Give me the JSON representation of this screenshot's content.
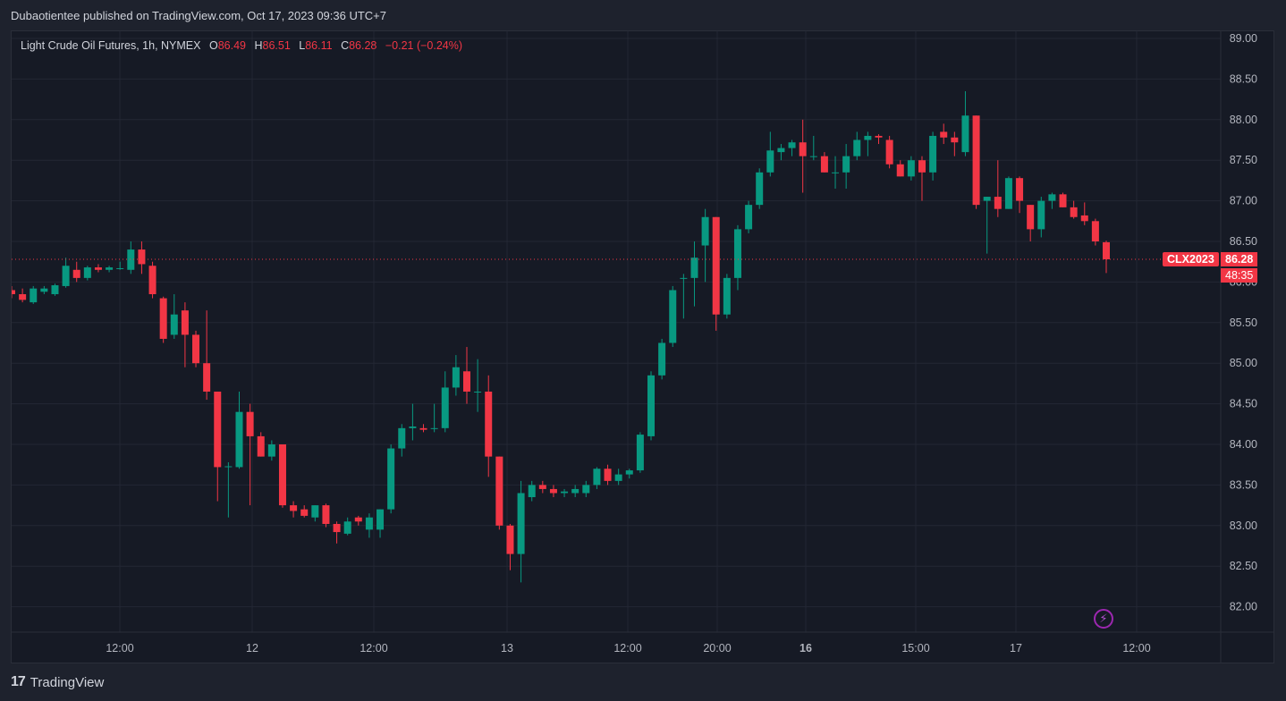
{
  "header": {
    "publisher_line": "Dubaotientee published on TradingView.com, Oct 17, 2023 09:36 UTC+7"
  },
  "legend": {
    "symbol": "Light Crude Oil Futures, 1h, NYMEX",
    "open_label": "O",
    "open": "86.49",
    "high_label": "H",
    "high": "86.51",
    "low_label": "L",
    "low": "86.11",
    "close_label": "C",
    "close": "86.28",
    "change": "−0.21 (−0.24%)"
  },
  "price_tag": {
    "ticker": "CLX2023",
    "price": "86.28",
    "countdown": "48:35"
  },
  "footer": {
    "brand": "TradingView",
    "logo": "17"
  },
  "icons": {
    "alert": "lightning-icon",
    "logo": "tradingview-logo-icon"
  },
  "colors": {
    "up": "#089981",
    "down": "#f23645",
    "background": "#161a25",
    "grid": "#232734",
    "axis_text": "#b2b5be"
  },
  "chart_data": {
    "type": "candlestick",
    "interval": "1h",
    "ylim": [
      81.6,
      89.1
    ],
    "y_ticks": [
      "89.00",
      "88.50",
      "88.00",
      "87.50",
      "87.00",
      "86.50",
      "86.00",
      "85.50",
      "85.00",
      "84.50",
      "84.00",
      "83.50",
      "83.00",
      "82.50",
      "82.00"
    ],
    "x_ticks": [
      "12:00",
      "12",
      "12:00",
      "13",
      "12:00",
      "20:00",
      "16",
      "15:00",
      "17",
      "12:00"
    ],
    "last_price": 86.28,
    "candles": [
      {
        "o": 85.9,
        "h": 85.95,
        "l": 85.8,
        "c": 85.85
      },
      {
        "o": 85.85,
        "h": 85.92,
        "l": 85.75,
        "c": 85.78
      },
      {
        "o": 85.75,
        "h": 85.95,
        "l": 85.73,
        "c": 85.92
      },
      {
        "o": 85.88,
        "h": 85.95,
        "l": 85.85,
        "c": 85.92
      },
      {
        "o": 85.85,
        "h": 85.98,
        "l": 85.83,
        "c": 85.96
      },
      {
        "o": 85.95,
        "h": 86.3,
        "l": 85.93,
        "c": 86.2
      },
      {
        "o": 86.15,
        "h": 86.25,
        "l": 86.0,
        "c": 86.05
      },
      {
        "o": 86.05,
        "h": 86.2,
        "l": 86.02,
        "c": 86.18
      },
      {
        "o": 86.18,
        "h": 86.22,
        "l": 86.12,
        "c": 86.15
      },
      {
        "o": 86.15,
        "h": 86.2,
        "l": 86.12,
        "c": 86.18
      },
      {
        "o": 86.17,
        "h": 86.25,
        "l": 86.15,
        "c": 86.17
      },
      {
        "o": 86.15,
        "h": 86.5,
        "l": 86.1,
        "c": 86.4
      },
      {
        "o": 86.4,
        "h": 86.5,
        "l": 86.1,
        "c": 86.22
      },
      {
        "o": 86.2,
        "h": 86.25,
        "l": 85.8,
        "c": 85.85
      },
      {
        "o": 85.8,
        "h": 85.82,
        "l": 85.25,
        "c": 85.3
      },
      {
        "o": 85.35,
        "h": 85.85,
        "l": 85.3,
        "c": 85.6
      },
      {
        "o": 85.65,
        "h": 85.75,
        "l": 84.95,
        "c": 85.35
      },
      {
        "o": 85.35,
        "h": 85.4,
        "l": 84.95,
        "c": 85.0
      },
      {
        "o": 85.0,
        "h": 85.65,
        "l": 84.55,
        "c": 84.65
      },
      {
        "o": 84.65,
        "h": 84.65,
        "l": 83.3,
        "c": 83.72
      },
      {
        "o": 83.72,
        "h": 83.78,
        "l": 83.1,
        "c": 83.73
      },
      {
        "o": 83.72,
        "h": 84.65,
        "l": 83.7,
        "c": 84.4
      },
      {
        "o": 84.4,
        "h": 84.5,
        "l": 83.25,
        "c": 84.1
      },
      {
        "o": 84.1,
        "h": 84.15,
        "l": 83.85,
        "c": 83.85
      },
      {
        "o": 83.85,
        "h": 84.05,
        "l": 83.8,
        "c": 84.0
      },
      {
        "o": 84.0,
        "h": 84.0,
        "l": 83.22,
        "c": 83.25
      },
      {
        "o": 83.25,
        "h": 83.3,
        "l": 83.1,
        "c": 83.18
      },
      {
        "o": 83.2,
        "h": 83.25,
        "l": 83.1,
        "c": 83.12
      },
      {
        "o": 83.1,
        "h": 83.25,
        "l": 83.05,
        "c": 83.25
      },
      {
        "o": 83.25,
        "h": 83.27,
        "l": 82.98,
        "c": 83.02
      },
      {
        "o": 83.02,
        "h": 83.05,
        "l": 82.78,
        "c": 82.92
      },
      {
        "o": 82.9,
        "h": 83.1,
        "l": 82.88,
        "c": 83.05
      },
      {
        "o": 83.1,
        "h": 83.12,
        "l": 83.0,
        "c": 83.05
      },
      {
        "o": 82.95,
        "h": 83.15,
        "l": 82.85,
        "c": 83.1
      },
      {
        "o": 82.95,
        "h": 83.2,
        "l": 82.85,
        "c": 83.2
      },
      {
        "o": 83.2,
        "h": 84.0,
        "l": 83.15,
        "c": 83.95
      },
      {
        "o": 83.95,
        "h": 84.25,
        "l": 83.85,
        "c": 84.2
      },
      {
        "o": 84.2,
        "h": 84.5,
        "l": 84.05,
        "c": 84.22
      },
      {
        "o": 84.2,
        "h": 84.25,
        "l": 84.15,
        "c": 84.18
      },
      {
        "o": 84.2,
        "h": 84.5,
        "l": 84.15,
        "c": 84.2
      },
      {
        "o": 84.2,
        "h": 84.9,
        "l": 84.15,
        "c": 84.7
      },
      {
        "o": 84.7,
        "h": 85.1,
        "l": 84.6,
        "c": 84.95
      },
      {
        "o": 84.9,
        "h": 85.2,
        "l": 84.5,
        "c": 84.65
      },
      {
        "o": 84.65,
        "h": 85.05,
        "l": 84.4,
        "c": 84.65
      },
      {
        "o": 84.65,
        "h": 84.85,
        "l": 83.6,
        "c": 83.85
      },
      {
        "o": 83.85,
        "h": 83.85,
        "l": 82.95,
        "c": 83.0
      },
      {
        "o": 83.0,
        "h": 83.02,
        "l": 82.45,
        "c": 82.65
      },
      {
        "o": 82.65,
        "h": 83.55,
        "l": 82.3,
        "c": 83.4
      },
      {
        "o": 83.35,
        "h": 83.55,
        "l": 83.3,
        "c": 83.5
      },
      {
        "o": 83.5,
        "h": 83.55,
        "l": 83.4,
        "c": 83.45
      },
      {
        "o": 83.45,
        "h": 83.5,
        "l": 83.35,
        "c": 83.4
      },
      {
        "o": 83.4,
        "h": 83.45,
        "l": 83.35,
        "c": 83.42
      },
      {
        "o": 83.4,
        "h": 83.5,
        "l": 83.35,
        "c": 83.45
      },
      {
        "o": 83.4,
        "h": 83.55,
        "l": 83.35,
        "c": 83.5
      },
      {
        "o": 83.5,
        "h": 83.72,
        "l": 83.45,
        "c": 83.7
      },
      {
        "o": 83.7,
        "h": 83.75,
        "l": 83.5,
        "c": 83.55
      },
      {
        "o": 83.55,
        "h": 83.7,
        "l": 83.5,
        "c": 83.63
      },
      {
        "o": 83.63,
        "h": 83.7,
        "l": 83.58,
        "c": 83.68
      },
      {
        "o": 83.68,
        "h": 84.15,
        "l": 83.65,
        "c": 84.12
      },
      {
        "o": 84.1,
        "h": 84.9,
        "l": 84.05,
        "c": 84.85
      },
      {
        "o": 84.85,
        "h": 85.3,
        "l": 84.8,
        "c": 85.25
      },
      {
        "o": 85.25,
        "h": 85.95,
        "l": 85.2,
        "c": 85.9
      },
      {
        "o": 86.05,
        "h": 86.1,
        "l": 85.55,
        "c": 86.05
      },
      {
        "o": 86.05,
        "h": 86.5,
        "l": 85.7,
        "c": 86.3
      },
      {
        "o": 86.45,
        "h": 86.9,
        "l": 86.0,
        "c": 86.8
      },
      {
        "o": 86.8,
        "h": 86.8,
        "l": 85.4,
        "c": 85.6
      },
      {
        "o": 85.6,
        "h": 86.1,
        "l": 85.55,
        "c": 86.05
      },
      {
        "o": 86.05,
        "h": 86.7,
        "l": 85.9,
        "c": 86.65
      },
      {
        "o": 86.65,
        "h": 87.0,
        "l": 86.6,
        "c": 86.95
      },
      {
        "o": 86.95,
        "h": 87.4,
        "l": 86.9,
        "c": 87.35
      },
      {
        "o": 87.35,
        "h": 87.85,
        "l": 87.3,
        "c": 87.62
      },
      {
        "o": 87.6,
        "h": 87.7,
        "l": 87.5,
        "c": 87.65
      },
      {
        "o": 87.65,
        "h": 87.75,
        "l": 87.55,
        "c": 87.72
      },
      {
        "o": 87.72,
        "h": 88.0,
        "l": 87.1,
        "c": 87.55
      },
      {
        "o": 87.55,
        "h": 87.8,
        "l": 87.5,
        "c": 87.55
      },
      {
        "o": 87.55,
        "h": 87.6,
        "l": 87.35,
        "c": 87.35
      },
      {
        "o": 87.35,
        "h": 87.55,
        "l": 87.15,
        "c": 87.35
      },
      {
        "o": 87.35,
        "h": 87.7,
        "l": 87.15,
        "c": 87.55
      },
      {
        "o": 87.55,
        "h": 87.85,
        "l": 87.5,
        "c": 87.75
      },
      {
        "o": 87.75,
        "h": 87.85,
        "l": 87.55,
        "c": 87.8
      },
      {
        "o": 87.8,
        "h": 87.82,
        "l": 87.7,
        "c": 87.78
      },
      {
        "o": 87.75,
        "h": 87.8,
        "l": 87.4,
        "c": 87.45
      },
      {
        "o": 87.45,
        "h": 87.5,
        "l": 87.3,
        "c": 87.3
      },
      {
        "o": 87.3,
        "h": 87.55,
        "l": 87.25,
        "c": 87.5
      },
      {
        "o": 87.5,
        "h": 87.55,
        "l": 87.0,
        "c": 87.35
      },
      {
        "o": 87.35,
        "h": 87.85,
        "l": 87.25,
        "c": 87.8
      },
      {
        "o": 87.85,
        "h": 87.95,
        "l": 87.7,
        "c": 87.78
      },
      {
        "o": 87.78,
        "h": 87.85,
        "l": 87.55,
        "c": 87.72
      },
      {
        "o": 87.6,
        "h": 88.35,
        "l": 87.55,
        "c": 88.05
      },
      {
        "o": 88.05,
        "h": 88.05,
        "l": 86.9,
        "c": 86.95
      },
      {
        "o": 87.0,
        "h": 87.05,
        "l": 86.35,
        "c": 87.05
      },
      {
        "o": 87.05,
        "h": 87.5,
        "l": 86.8,
        "c": 86.9
      },
      {
        "o": 86.9,
        "h": 87.3,
        "l": 86.9,
        "c": 87.28
      },
      {
        "o": 87.28,
        "h": 87.3,
        "l": 86.85,
        "c": 87.0
      },
      {
        "o": 86.95,
        "h": 86.95,
        "l": 86.5,
        "c": 86.65
      },
      {
        "o": 86.65,
        "h": 87.05,
        "l": 86.55,
        "c": 87.0
      },
      {
        "o": 87.0,
        "h": 87.1,
        "l": 86.9,
        "c": 87.08
      },
      {
        "o": 87.08,
        "h": 87.1,
        "l": 86.92,
        "c": 86.92
      },
      {
        "o": 86.92,
        "h": 87.0,
        "l": 86.78,
        "c": 86.8
      },
      {
        "o": 86.82,
        "h": 86.98,
        "l": 86.7,
        "c": 86.75
      },
      {
        "o": 86.75,
        "h": 86.78,
        "l": 86.45,
        "c": 86.5
      },
      {
        "o": 86.49,
        "h": 86.51,
        "l": 86.11,
        "c": 86.28
      }
    ]
  }
}
